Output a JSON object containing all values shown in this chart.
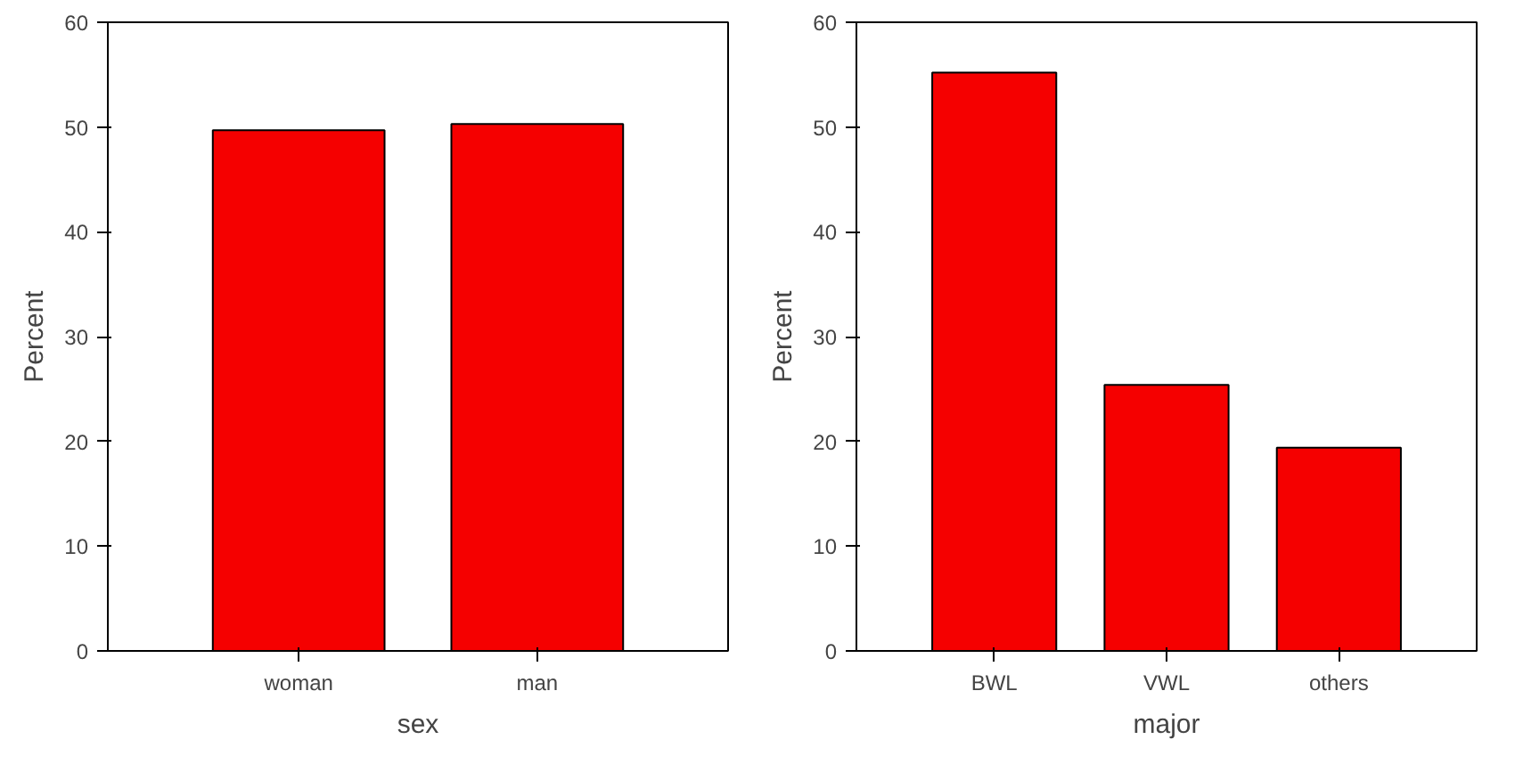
{
  "chart_data": [
    {
      "type": "bar",
      "xlabel": "sex",
      "ylabel": "Percent",
      "categories": [
        "woman",
        "man"
      ],
      "values": [
        49.7,
        50.3
      ],
      "color": "#f50000",
      "ylim": [
        0,
        60
      ],
      "yticks": [
        0,
        10,
        20,
        30,
        40,
        50,
        60
      ],
      "grid": false,
      "legend": false
    },
    {
      "type": "bar",
      "xlabel": "major",
      "ylabel": "Percent",
      "categories": [
        "BWL",
        "VWL",
        "others"
      ],
      "values": [
        55.2,
        25.4,
        19.4
      ],
      "color": "#f50000",
      "ylim": [
        0,
        60
      ],
      "yticks": [
        0,
        10,
        20,
        30,
        40,
        50,
        60
      ],
      "grid": false,
      "legend": false
    }
  ]
}
